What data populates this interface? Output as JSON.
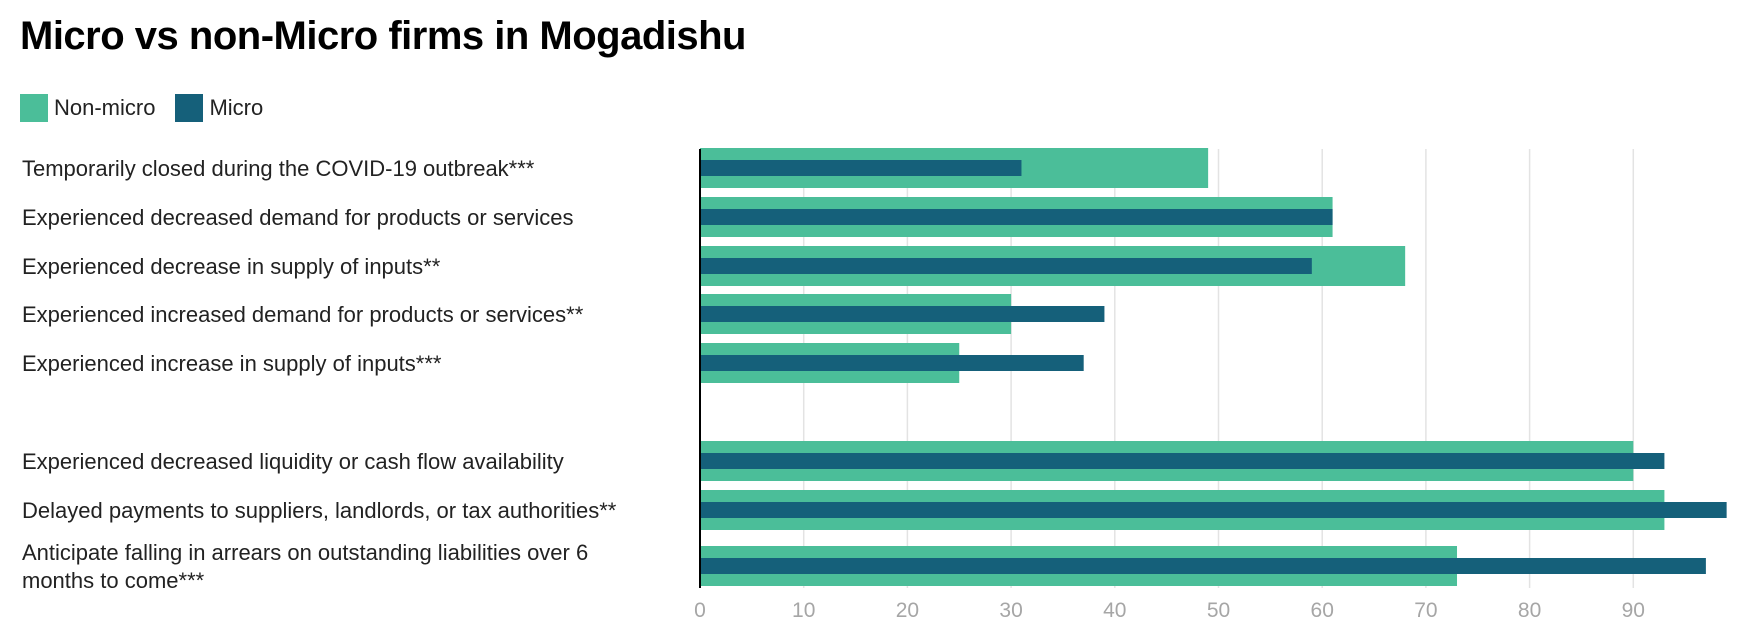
{
  "title": "Micro vs non-Micro firms in Mogadishu",
  "colors": {
    "non_micro": "#4bbe99",
    "micro": "#15607a",
    "grid": "#e3e3e3",
    "axis": "#000000"
  },
  "legend": [
    {
      "label": "Non-micro",
      "color": "#4bbe99"
    },
    {
      "label": "Micro",
      "color": "#15607a"
    }
  ],
  "chart_data": {
    "type": "bar",
    "orientation": "horizontal",
    "title": "Micro vs non-Micro firms in Mogadishu",
    "xlabel": "",
    "ylabel": "",
    "xlim": [
      0,
      99
    ],
    "xticks": [
      0,
      10,
      20,
      30,
      40,
      50,
      60,
      70,
      80,
      90
    ],
    "grid": true,
    "legend_position": "top-left",
    "categories": [
      [
        "Temporarily closed during the COVID-19 outbreak***"
      ],
      [
        "Experienced decreased demand for products or services"
      ],
      [
        "Experienced decrease in supply of inputs**"
      ],
      [
        "Experienced increased demand for products or services**"
      ],
      [
        "Experienced increase in supply of inputs***"
      ],
      [
        ""
      ],
      [
        "Experienced decreased liquidity or cash flow availability"
      ],
      [
        "Delayed payments to suppliers, landlords, or tax authorities**"
      ],
      [
        "Anticipate falling in arrears on outstanding liabilities over 6",
        "months to come***"
      ]
    ],
    "series": [
      {
        "name": "Non-micro",
        "values": [
          49,
          61,
          68,
          30,
          25,
          null,
          90,
          93,
          73
        ]
      },
      {
        "name": "Micro",
        "values": [
          31,
          61,
          59,
          39,
          37,
          null,
          93,
          99,
          97
        ]
      }
    ]
  }
}
